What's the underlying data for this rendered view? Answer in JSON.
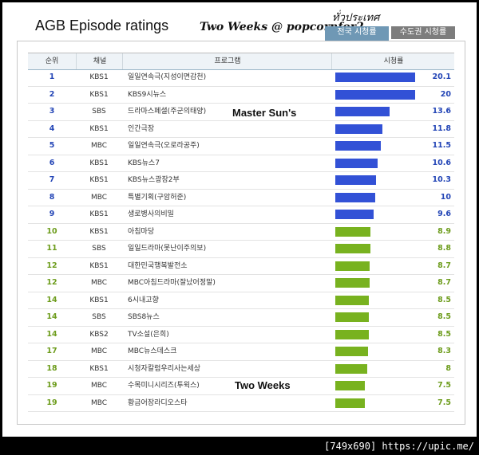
{
  "header": {
    "title": "AGB Episode ratings",
    "credit": "Two Weeks @ popcornfor2",
    "thai_label": "ทั่วประเทศ",
    "tabs": [
      {
        "label": "전국 시청률",
        "active": true
      },
      {
        "label": "수도권 시청률",
        "active": false
      }
    ]
  },
  "table": {
    "columns": [
      "순위",
      "채널",
      "프로그램",
      "시청률"
    ],
    "rows": [
      {
        "rank": "1",
        "channel": "KBS1",
        "program": "일일연속극(지성이면감천)",
        "rating": "20.1",
        "tier": "top"
      },
      {
        "rank": "2",
        "channel": "KBS1",
        "program": "KBS9시뉴스",
        "rating": "20",
        "tier": "top"
      },
      {
        "rank": "3",
        "channel": "SBS",
        "program": "드라마스페셜(주군의태양)",
        "rating": "13.6",
        "tier": "top"
      },
      {
        "rank": "4",
        "channel": "KBS1",
        "program": "인간극장",
        "rating": "11.8",
        "tier": "top"
      },
      {
        "rank": "5",
        "channel": "MBC",
        "program": "일일연속극(오로라공주)",
        "rating": "11.5",
        "tier": "top"
      },
      {
        "rank": "6",
        "channel": "KBS1",
        "program": "KBS뉴스7",
        "rating": "10.6",
        "tier": "top"
      },
      {
        "rank": "7",
        "channel": "KBS1",
        "program": "KBS뉴스광장2부",
        "rating": "10.3",
        "tier": "top"
      },
      {
        "rank": "8",
        "channel": "MBC",
        "program": "특별기획(구암허준)",
        "rating": "10",
        "tier": "top"
      },
      {
        "rank": "9",
        "channel": "KBS1",
        "program": "생로병사의비밀",
        "rating": "9.6",
        "tier": "top"
      },
      {
        "rank": "10",
        "channel": "KBS1",
        "program": "아침마당",
        "rating": "8.9",
        "tier": "rest"
      },
      {
        "rank": "11",
        "channel": "SBS",
        "program": "일일드라마(못난이주의보)",
        "rating": "8.8",
        "tier": "rest"
      },
      {
        "rank": "12",
        "channel": "KBS1",
        "program": "대한민국행복발전소",
        "rating": "8.7",
        "tier": "rest"
      },
      {
        "rank": "12",
        "channel": "MBC",
        "program": "MBC아침드라마(잘났어정말)",
        "rating": "8.7",
        "tier": "rest"
      },
      {
        "rank": "14",
        "channel": "KBS1",
        "program": "6시내고향",
        "rating": "8.5",
        "tier": "rest"
      },
      {
        "rank": "14",
        "channel": "SBS",
        "program": "SBS8뉴스",
        "rating": "8.5",
        "tier": "rest"
      },
      {
        "rank": "14",
        "channel": "KBS2",
        "program": "TV소설(은희)",
        "rating": "8.5",
        "tier": "rest"
      },
      {
        "rank": "17",
        "channel": "MBC",
        "program": "MBC뉴스데스크",
        "rating": "8.3",
        "tier": "rest"
      },
      {
        "rank": "18",
        "channel": "KBS1",
        "program": "시청자칼럼우리사는세상",
        "rating": "8",
        "tier": "rest"
      },
      {
        "rank": "19",
        "channel": "MBC",
        "program": "수목미니시리즈(투윅스)",
        "rating": "7.5",
        "tier": "rest"
      },
      {
        "rank": "19",
        "channel": "MBC",
        "program": "황금어장라디오스타",
        "rating": "7.5",
        "tier": "rest"
      }
    ],
    "rating_scale_max": 20.1
  },
  "annotations": {
    "master_sun": "Master Sun's",
    "two_weeks": "Two Weeks"
  },
  "watermark": "[749x690] https://upic.me/",
  "colors": {
    "blue_bar": "#3251d6",
    "green_bar": "#78b21f",
    "blue_text": "#2345b6",
    "green_text": "#6d9c1c"
  }
}
